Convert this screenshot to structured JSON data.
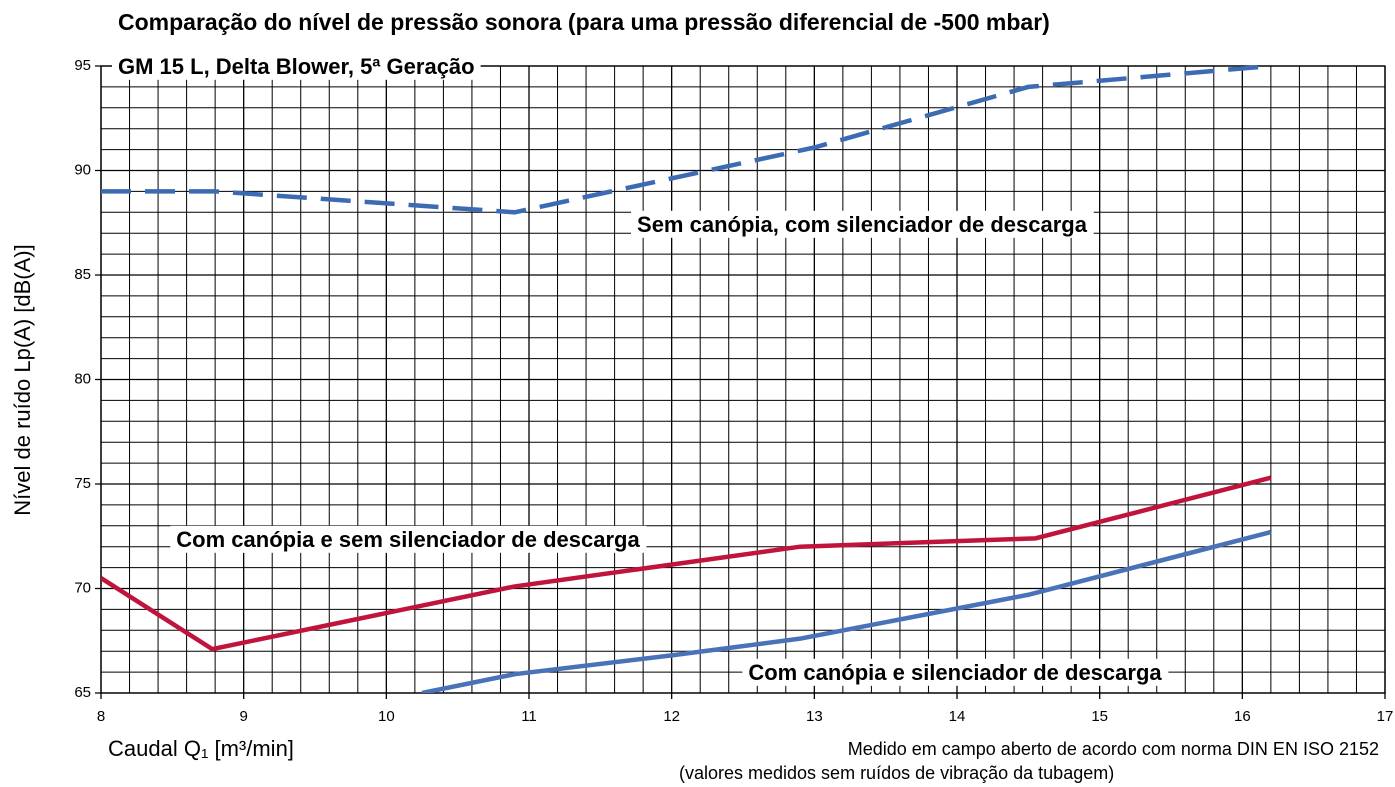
{
  "chart_data": {
    "type": "line",
    "title": "Comparação do nível de pressão sonora (para uma pressão diferencial de -500 mbar)",
    "subtitle": "GM 15 L, Delta Blower, 5ª Geração",
    "x_label": "Caudal  Q₁ [m³/min]",
    "y_label": "Nível de ruído Lp(A) [dB(A)]",
    "note": [
      "Medido em campo aberto de acordo com norma DIN EN ISO 2152",
      "(valores medidos sem ruídos de vibração da tubagem)"
    ],
    "xlim": [
      8,
      17
    ],
    "xticks": [
      8,
      9,
      10,
      11,
      12,
      13,
      14,
      15,
      16,
      17
    ],
    "ylim": [
      65,
      95
    ],
    "yticks": [
      65,
      70,
      75,
      80,
      85,
      90,
      95
    ],
    "grid": true,
    "minor_divisions": [
      5,
      5
    ],
    "series": [
      {
        "name": "Sem canópia, com silenciador de descarga",
        "color": "#3d6bb3",
        "dashed": true,
        "x": [
          8,
          8.8,
          10.9,
          13,
          14.5,
          16.2
        ],
        "values": [
          89,
          89,
          88,
          91.1,
          94,
          95
        ]
      },
      {
        "name": "Com canópia e sem silenciador de descarga",
        "color": "#c0143c",
        "dashed": false,
        "x": [
          8,
          8.78,
          10.9,
          12.9,
          14.55,
          16.2
        ],
        "values": [
          70.5,
          67.1,
          70.1,
          72.0,
          72.4,
          75.3
        ]
      },
      {
        "name": "Com canópia e silenciador de descarga",
        "color": "#4a72b8",
        "dashed": false,
        "x": [
          10.25,
          10.9,
          12,
          12.9,
          14.5,
          16.2
        ],
        "values": [
          65,
          65.9,
          66.8,
          67.6,
          69.7,
          72.7
        ]
      }
    ]
  }
}
